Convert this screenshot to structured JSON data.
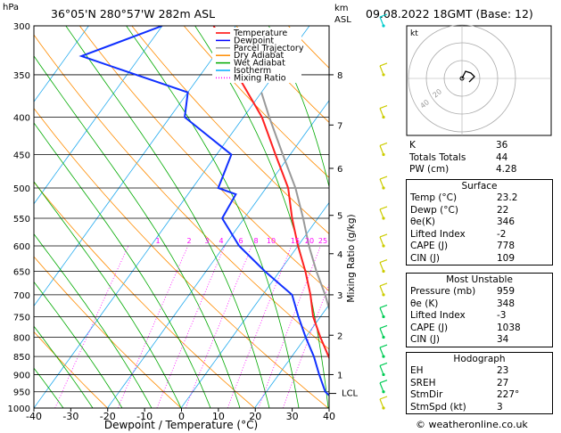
{
  "header": {
    "location": "36°05'N  280°57'W  282m  ASL",
    "datetime": "09.08.2022  18GMT  (Base: 12)",
    "hpa_label": "hPa",
    "km_label": "km",
    "asl_label": "ASL"
  },
  "chart_data": {
    "type": "skew-t log-p",
    "xlabel": "Dewpoint / Temperature (°C)",
    "ylabel_right": "Mixing Ratio (g/kg)",
    "x_ticks": [
      -40,
      -30,
      -20,
      -10,
      0,
      10,
      20,
      30,
      40
    ],
    "pressure_levels": [
      300,
      350,
      400,
      450,
      500,
      550,
      600,
      650,
      700,
      750,
      800,
      850,
      900,
      950,
      1000
    ],
    "km_ticks": [
      {
        "label": "8",
        "p": 350
      },
      {
        "label": "7",
        "p": 410
      },
      {
        "label": "6",
        "p": 470
      },
      {
        "label": "5",
        "p": 545
      },
      {
        "label": "4",
        "p": 615
      },
      {
        "label": "3",
        "p": 700
      },
      {
        "label": "2",
        "p": 795
      },
      {
        "label": "1",
        "p": 900
      }
    ],
    "mixing_ratio_labels": [
      "1",
      "2",
      "3",
      "4",
      "6",
      "8",
      "10",
      "15",
      "20",
      "25"
    ],
    "lcl_label": "LCL",
    "legend": [
      {
        "name": "Temperature",
        "color": "#ff0000"
      },
      {
        "name": "Dewpoint",
        "color": "#0000ff"
      },
      {
        "name": "Parcel Trajectory",
        "color": "#999999"
      },
      {
        "name": "Dry Adiabat",
        "color": "#ff8c00"
      },
      {
        "name": "Wet Adiabat",
        "color": "#00aa00"
      },
      {
        "name": "Isotherm",
        "color": "#00aaff"
      },
      {
        "name": "Mixing Ratio",
        "color": "#ff00ff"
      }
    ],
    "temperature": [
      {
        "p": 1000,
        "t": 23.2
      },
      {
        "p": 950,
        "t": 21.5
      },
      {
        "p": 900,
        "t": 18.0
      },
      {
        "p": 850,
        "t": 15.0
      },
      {
        "p": 800,
        "t": 12.0
      },
      {
        "p": 750,
        "t": 9.0
      },
      {
        "p": 700,
        "t": 6.5
      },
      {
        "p": 650,
        "t": 3.5
      },
      {
        "p": 600,
        "t": 0.0
      },
      {
        "p": 550,
        "t": -3.5
      },
      {
        "p": 500,
        "t": -7.0
      },
      {
        "p": 450,
        "t": -12.0
      },
      {
        "p": 400,
        "t": -17.5
      },
      {
        "p": 350,
        "t": -25.0
      },
      {
        "p": 300,
        "t": -33.0
      }
    ],
    "dewpoint": [
      {
        "p": 1000,
        "t": 22.0
      },
      {
        "p": 950,
        "t": 18.0
      },
      {
        "p": 900,
        "t": 15.5
      },
      {
        "p": 850,
        "t": 13.0
      },
      {
        "p": 800,
        "t": 10.0
      },
      {
        "p": 750,
        "t": 7.0
      },
      {
        "p": 700,
        "t": 4.0
      },
      {
        "p": 650,
        "t": -2.0
      },
      {
        "p": 600,
        "t": -8.0
      },
      {
        "p": 550,
        "t": -13.0
      },
      {
        "p": 510,
        "t": -13.5
      },
      {
        "p": 500,
        "t": -16.5
      },
      {
        "p": 450,
        "t": -18.0
      },
      {
        "p": 400,
        "t": -28.0
      },
      {
        "p": 370,
        "t": -30.0
      },
      {
        "p": 330,
        "t": -48.0
      },
      {
        "p": 300,
        "t": -40.0
      }
    ],
    "parcel": [
      {
        "p": 1000,
        "t": 23.2
      },
      {
        "p": 960,
        "t": 22.0
      },
      {
        "p": 900,
        "t": 19.5
      },
      {
        "p": 850,
        "t": 17.0
      },
      {
        "p": 800,
        "t": 14.5
      },
      {
        "p": 750,
        "t": 11.5
      },
      {
        "p": 700,
        "t": 8.5
      },
      {
        "p": 650,
        "t": 5.0
      },
      {
        "p": 600,
        "t": 1.5
      },
      {
        "p": 550,
        "t": -2.0
      },
      {
        "p": 500,
        "t": -6.0
      },
      {
        "p": 450,
        "t": -11.0
      },
      {
        "p": 400,
        "t": -16.5
      },
      {
        "p": 370,
        "t": -20.0
      }
    ]
  },
  "indices": [
    {
      "label": "K",
      "value": "36"
    },
    {
      "label": "Totals Totals",
      "value": "44"
    },
    {
      "label": "PW (cm)",
      "value": "4.28"
    }
  ],
  "surface": {
    "title": "Surface",
    "rows": [
      {
        "label": "Temp (°C)",
        "value": "23.2"
      },
      {
        "label": "Dewp (°C)",
        "value": "22"
      },
      {
        "label": "θe(K)",
        "value": "346"
      },
      {
        "label": "Lifted Index",
        "value": "-2"
      },
      {
        "label": "CAPE (J)",
        "value": "778"
      },
      {
        "label": "CIN (J)",
        "value": "109"
      }
    ]
  },
  "most_unstable": {
    "title": "Most Unstable",
    "rows": [
      {
        "label": "Pressure (mb)",
        "value": "959"
      },
      {
        "label": "θe (K)",
        "value": "348"
      },
      {
        "label": "Lifted Index",
        "value": "-3"
      },
      {
        "label": "CAPE (J)",
        "value": "1038"
      },
      {
        "label": "CIN (J)",
        "value": "34"
      }
    ]
  },
  "hodograph": {
    "title": "Hodograph",
    "kt_label": "kt",
    "rings": [
      "20",
      "40"
    ],
    "rows": [
      {
        "label": "EH",
        "value": "23"
      },
      {
        "label": "SREH",
        "value": "27"
      },
      {
        "label": "StmDir",
        "value": "227°"
      },
      {
        "label": "StmSpd (kt)",
        "value": "3"
      }
    ]
  },
  "credit": "© weatheronline.co.uk"
}
